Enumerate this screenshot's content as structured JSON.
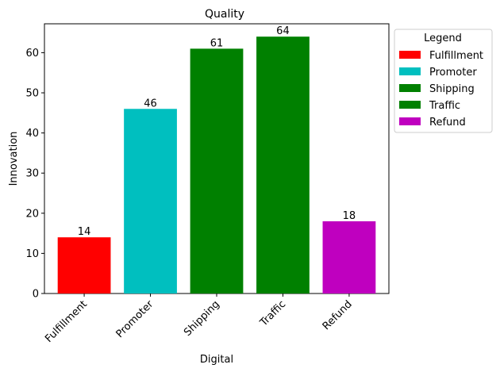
{
  "chart_data": {
    "type": "bar",
    "title": "Quality",
    "xlabel": "Digital",
    "ylabel": "Innovation",
    "categories": [
      "Fulfillment",
      "Promoter",
      "Shipping",
      "Traffic",
      "Refund"
    ],
    "values": [
      14,
      46,
      61,
      64,
      18
    ],
    "colors": [
      "#ff0000",
      "#00bfbf",
      "#008000",
      "#008000",
      "#bf00bf"
    ],
    "ylim": [
      0,
      67.2
    ],
    "yticks": [
      0,
      10,
      20,
      30,
      40,
      50,
      60
    ],
    "grid": false,
    "legend": {
      "title": "Legend",
      "placement": "outside-right",
      "entries": [
        {
          "label": "Fulfillment",
          "color": "#ff0000"
        },
        {
          "label": "Promoter",
          "color": "#00bfbf"
        },
        {
          "label": "Shipping",
          "color": "#008000"
        },
        {
          "label": "Traffic",
          "color": "#008000"
        },
        {
          "label": "Refund",
          "color": "#bf00bf"
        }
      ]
    }
  }
}
